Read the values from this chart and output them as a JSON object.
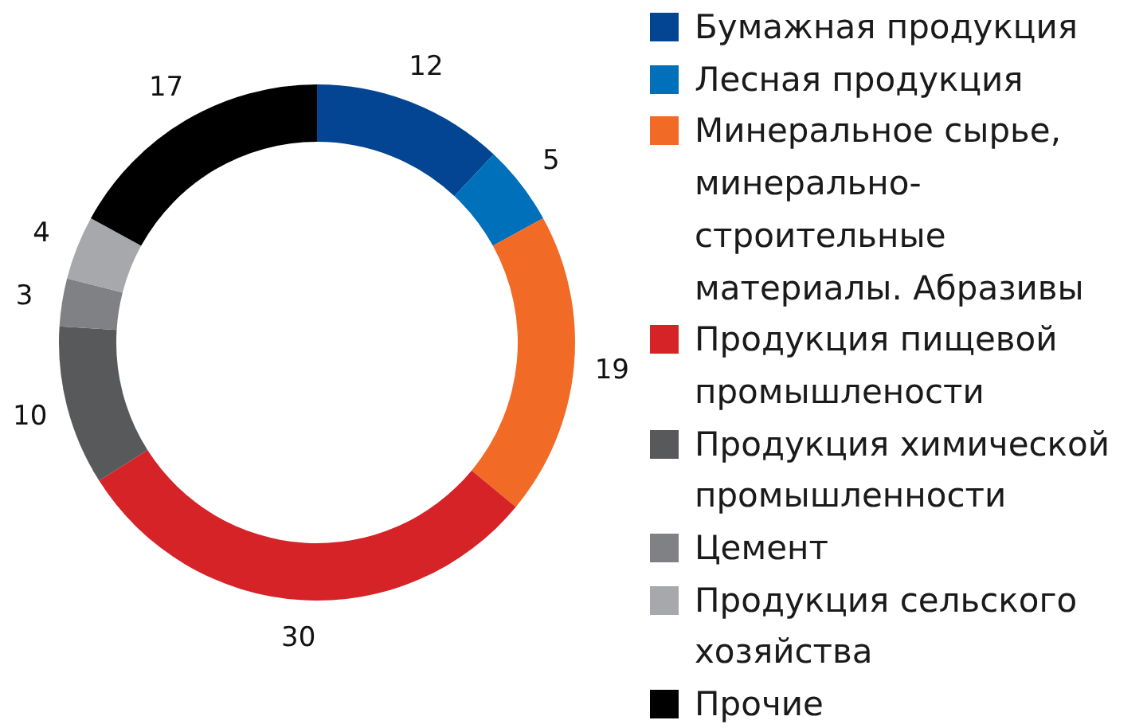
{
  "chart_data": {
    "type": "donut",
    "categories": [
      "Бумажная продукция",
      "Лесная продукция",
      "Минеральное сырье, минерально-строительные материалы. Абразивы",
      "Продукция пищевой промышлености",
      "Продукция химической промышленности",
      "Цемент",
      "Продукция сельского хозяйства",
      "Прочие"
    ],
    "values": [
      12,
      5,
      19,
      30,
      10,
      3,
      4,
      17
    ],
    "colors": [
      "#034592",
      "#0070bb",
      "#f26b26",
      "#d62328",
      "#58595b",
      "#808184",
      "#a7a8ab",
      "#000000"
    ],
    "data_labels": true,
    "legend": "right"
  }
}
